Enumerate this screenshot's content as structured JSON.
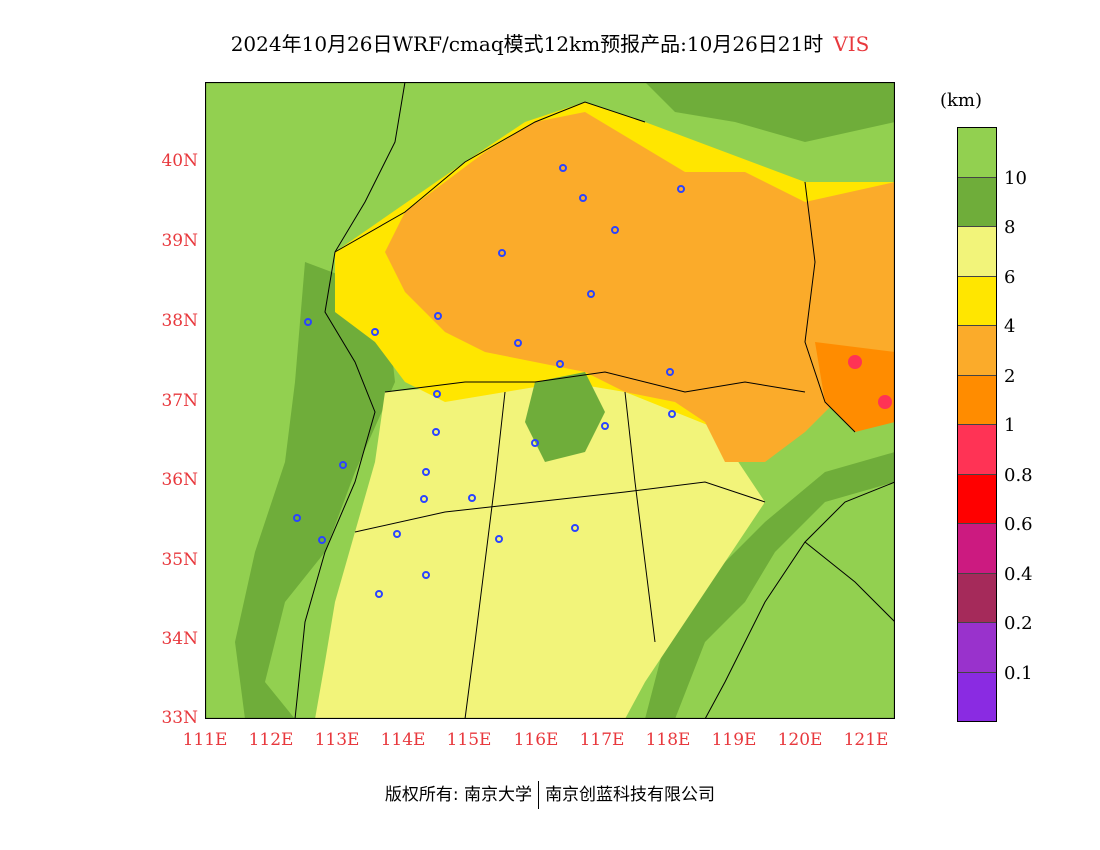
{
  "title": {
    "main": "2024年10月26日WRF/cmaq模式12km预报产品:10月26日21时",
    "variable": "VIS"
  },
  "map": {
    "lat_labels": [
      "40N",
      "39N",
      "38N",
      "37N",
      "36N",
      "35N",
      "34N",
      "33N"
    ],
    "lon_labels": [
      "111E",
      "112E",
      "113E",
      "114E",
      "115E",
      "116E",
      "117E",
      "118E",
      "119E",
      "120E",
      "121E"
    ],
    "lat_range": [
      33,
      41
    ],
    "lon_range": [
      111,
      121.4
    ],
    "colors": {
      "vis_gt10": "#92d050",
      "vis_8_10": "#6fad3a",
      "vis_6_8": "#f2f47a",
      "vis_4_6": "#ffe600",
      "vis_2_4": "#fbab2a",
      "vis_1_2": "#ff8c00",
      "vis_0_8_1": "#ff3355",
      "city_marker": "#2b44ff",
      "boundary": "#000000"
    }
  },
  "colorbar": {
    "unit": "(km)",
    "labels": [
      "10",
      "8",
      "6",
      "4",
      "2",
      "1",
      "0.8",
      "0.6",
      "0.4",
      "0.2",
      "0.1"
    ],
    "colors": [
      "#92d050",
      "#6fad3a",
      "#f2f47a",
      "#ffe600",
      "#fbab2a",
      "#ff8c00",
      "#ff3355",
      "#ff0000",
      "#cc1a80",
      "#a52a5a",
      "#9932cc",
      "#8a2be2"
    ]
  },
  "footer": {
    "left": "版权所有: 南京大学",
    "right": "南京创蓝科技有限公司"
  }
}
